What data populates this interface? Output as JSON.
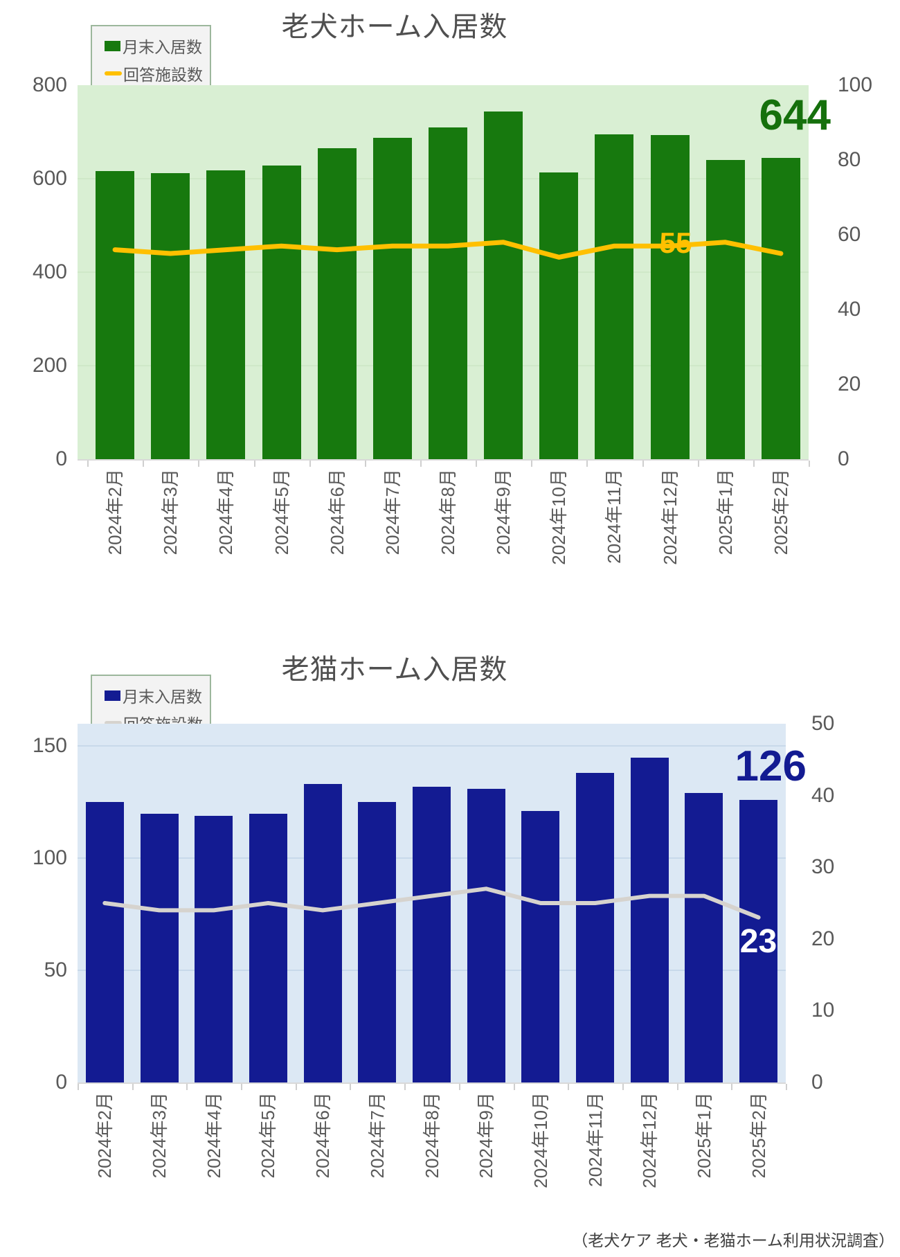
{
  "page": {
    "source_note": "（老犬ケア 老犬・老猫ホーム利用状況調査）"
  },
  "chart_data": [
    {
      "type": "bar+line",
      "title": "老犬ホーム入居数",
      "categories": [
        "2024年2月",
        "2024年3月",
        "2024年4月",
        "2024年5月",
        "2024年6月",
        "2024年7月",
        "2024年8月",
        "2024年9月",
        "2024年10月",
        "2024年11月",
        "2024年12月",
        "2025年1月",
        "2025年2月"
      ],
      "series": [
        {
          "name": "月末入居数",
          "type": "bar",
          "axis": "left",
          "color": "#17790e",
          "values": [
            616,
            612,
            618,
            628,
            665,
            688,
            709,
            744,
            613,
            695,
            693,
            640,
            644
          ]
        },
        {
          "name": "回答施設数",
          "type": "line",
          "axis": "right",
          "color": "#ffc000",
          "values": [
            56,
            55,
            56,
            57,
            56,
            57,
            57,
            58,
            54,
            57,
            57,
            58,
            55
          ]
        }
      ],
      "legend": [
        {
          "label": "月末入居数",
          "swatch": "bar"
        },
        {
          "label": "回答施設数",
          "swatch": "line"
        }
      ],
      "legend_position": "top-left",
      "grid": true,
      "plot_background": "#d9efd3",
      "grid_color": "#cfe8c8",
      "left_axis": {
        "min": 0,
        "max": 800,
        "ticks": [
          0,
          200,
          400,
          600,
          800
        ]
      },
      "right_axis": {
        "min": 0,
        "max": 100,
        "ticks": [
          0,
          20,
          40,
          60,
          80,
          100
        ]
      },
      "end_labels": {
        "bar": {
          "text": "644",
          "color": "#15700c"
        },
        "line": {
          "text": "55",
          "color": "#ffc000"
        }
      }
    },
    {
      "type": "bar+line",
      "title": "老猫ホーム入居数",
      "categories": [
        "2024年2月",
        "2024年3月",
        "2024年4月",
        "2024年5月",
        "2024年6月",
        "2024年7月",
        "2024年8月",
        "2024年9月",
        "2024年10月",
        "2024年11月",
        "2024年12月",
        "2025年1月",
        "2025年2月"
      ],
      "series": [
        {
          "name": "月末入居数",
          "type": "bar",
          "axis": "left",
          "color": "#131b92",
          "values": [
            125,
            120,
            119,
            120,
            133,
            125,
            132,
            131,
            121,
            138,
            145,
            129,
            126
          ]
        },
        {
          "name": "回答施設数",
          "type": "line",
          "axis": "right",
          "color": "#d6d3ce",
          "values": [
            25,
            24,
            24,
            25,
            24,
            25,
            26,
            27,
            25,
            25,
            26,
            26,
            23
          ]
        }
      ],
      "legend": [
        {
          "label": "月末入居数",
          "swatch": "bar"
        },
        {
          "label": "回答施設数",
          "swatch": "line"
        }
      ],
      "legend_position": "top-left",
      "grid": true,
      "plot_background": "#dce8f4",
      "grid_color": "#c8d9ea",
      "left_axis": {
        "min": 0,
        "max": 160,
        "ticks": [
          0,
          50,
          100,
          150
        ]
      },
      "right_axis": {
        "min": 0,
        "max": 50,
        "ticks": [
          0,
          10,
          20,
          30,
          40,
          50
        ]
      },
      "end_labels": {
        "bar": {
          "text": "126",
          "color": "#131b92"
        },
        "line": {
          "text": "23",
          "color": "#ffffff"
        }
      }
    }
  ]
}
